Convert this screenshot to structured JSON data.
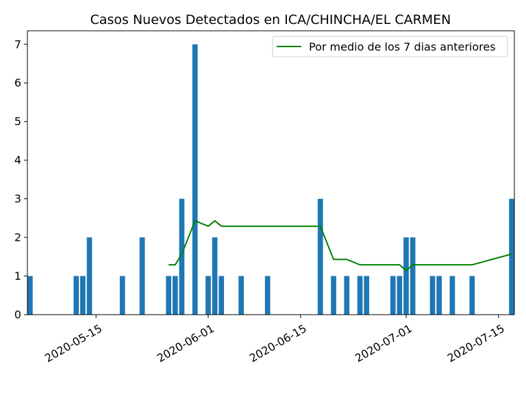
{
  "chart_data": {
    "type": "bar",
    "title": "Casos Nuevos Detectados en ICA/CHINCHA/EL CARMEN",
    "xlabel": "",
    "ylabel": "",
    "x_range": [
      "2020-05-05",
      "2020-07-17"
    ],
    "ylim": [
      0,
      7.35
    ],
    "y_ticks": [
      0,
      1,
      2,
      3,
      4,
      5,
      6,
      7
    ],
    "x_ticks": [
      {
        "date": "2020-05-15",
        "label": "2020-05-15"
      },
      {
        "date": "2020-06-01",
        "label": "2020-06-01"
      },
      {
        "date": "2020-06-15",
        "label": "2020-06-15"
      },
      {
        "date": "2020-07-01",
        "label": "2020-07-01"
      },
      {
        "date": "2020-07-15",
        "label": "2020-07-15"
      }
    ],
    "grid": false,
    "legend_position": "top-right",
    "bar_color": "#1f77b4",
    "line_color": "#008000",
    "bars": [
      {
        "date": "2020-05-05",
        "value": 1
      },
      {
        "date": "2020-05-12",
        "value": 1
      },
      {
        "date": "2020-05-13",
        "value": 1
      },
      {
        "date": "2020-05-14",
        "value": 2
      },
      {
        "date": "2020-05-19",
        "value": 1
      },
      {
        "date": "2020-05-22",
        "value": 2
      },
      {
        "date": "2020-05-26",
        "value": 1
      },
      {
        "date": "2020-05-27",
        "value": 1
      },
      {
        "date": "2020-05-28",
        "value": 3
      },
      {
        "date": "2020-05-30",
        "value": 7
      },
      {
        "date": "2020-06-01",
        "value": 1
      },
      {
        "date": "2020-06-02",
        "value": 2
      },
      {
        "date": "2020-06-03",
        "value": 1
      },
      {
        "date": "2020-06-06",
        "value": 1
      },
      {
        "date": "2020-06-10",
        "value": 1
      },
      {
        "date": "2020-06-18",
        "value": 3
      },
      {
        "date": "2020-06-20",
        "value": 1
      },
      {
        "date": "2020-06-22",
        "value": 1
      },
      {
        "date": "2020-06-24",
        "value": 1
      },
      {
        "date": "2020-06-25",
        "value": 1
      },
      {
        "date": "2020-06-29",
        "value": 1
      },
      {
        "date": "2020-06-30",
        "value": 1
      },
      {
        "date": "2020-07-01",
        "value": 2
      },
      {
        "date": "2020-07-02",
        "value": 2
      },
      {
        "date": "2020-07-05",
        "value": 1
      },
      {
        "date": "2020-07-06",
        "value": 1
      },
      {
        "date": "2020-07-08",
        "value": 1
      },
      {
        "date": "2020-07-11",
        "value": 1
      },
      {
        "date": "2020-07-17",
        "value": 3
      }
    ],
    "series": [
      {
        "name": "Por medio de los 7 dias anteriores",
        "type": "line",
        "points": [
          {
            "date": "2020-05-26",
            "value": 1.29
          },
          {
            "date": "2020-05-27",
            "value": 1.29
          },
          {
            "date": "2020-05-28",
            "value": 1.57
          },
          {
            "date": "2020-05-30",
            "value": 2.43
          },
          {
            "date": "2020-06-01",
            "value": 2.29
          },
          {
            "date": "2020-06-02",
            "value": 2.43
          },
          {
            "date": "2020-06-03",
            "value": 2.29
          },
          {
            "date": "2020-06-18",
            "value": 2.29
          },
          {
            "date": "2020-06-20",
            "value": 1.43
          },
          {
            "date": "2020-06-22",
            "value": 1.43
          },
          {
            "date": "2020-06-24",
            "value": 1.29
          },
          {
            "date": "2020-06-30",
            "value": 1.29
          },
          {
            "date": "2020-07-01",
            "value": 1.14
          },
          {
            "date": "2020-07-02",
            "value": 1.29
          },
          {
            "date": "2020-07-11",
            "value": 1.29
          },
          {
            "date": "2020-07-17",
            "value": 1.57
          }
        ]
      }
    ]
  }
}
